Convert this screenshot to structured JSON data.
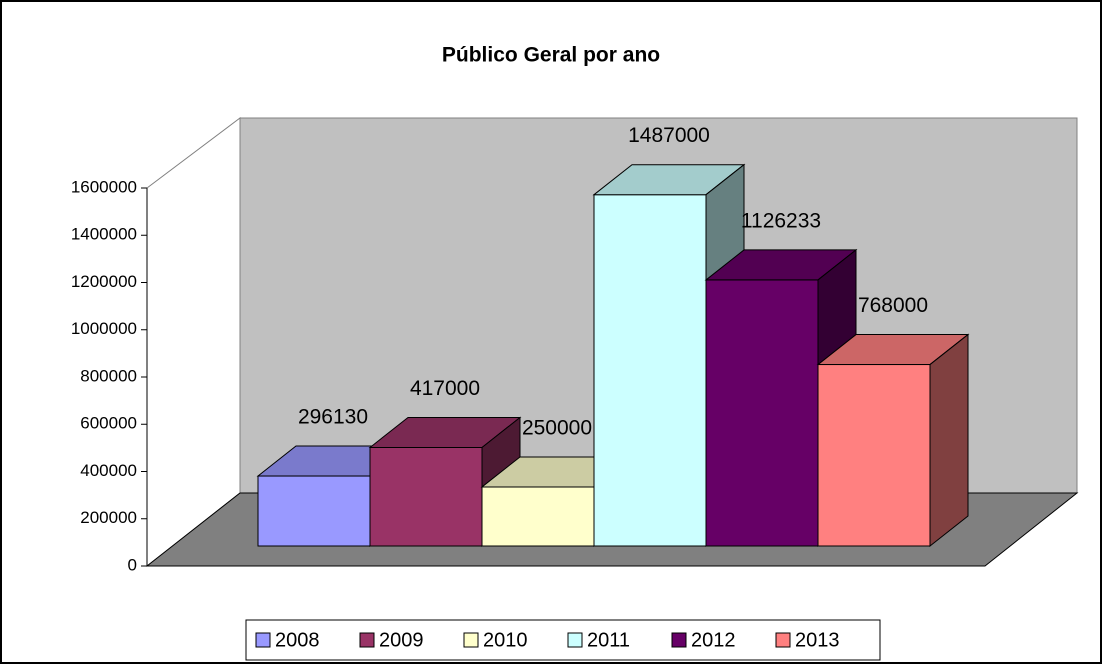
{
  "chart_data": {
    "type": "bar3d",
    "title": "Público Geral por ano",
    "series": [
      {
        "name": "2008",
        "color": "#9999ff",
        "values": [
          296130
        ]
      },
      {
        "name": "2009",
        "color": "#993366",
        "values": [
          417000
        ]
      },
      {
        "name": "2010",
        "color": "#ffffcc",
        "values": [
          250000
        ]
      },
      {
        "name": "2011",
        "color": "#ccffff",
        "values": [
          1487000
        ]
      },
      {
        "name": "2012",
        "color": "#660066",
        "values": [
          1126233
        ]
      },
      {
        "name": "2013",
        "color": "#ff8080",
        "values": [
          768000
        ]
      }
    ],
    "ylim": [
      0,
      1600000
    ],
    "yticks": [
      0,
      200000,
      400000,
      600000,
      800000,
      1000000,
      1200000,
      1400000,
      1600000
    ],
    "legend": "bottom"
  }
}
